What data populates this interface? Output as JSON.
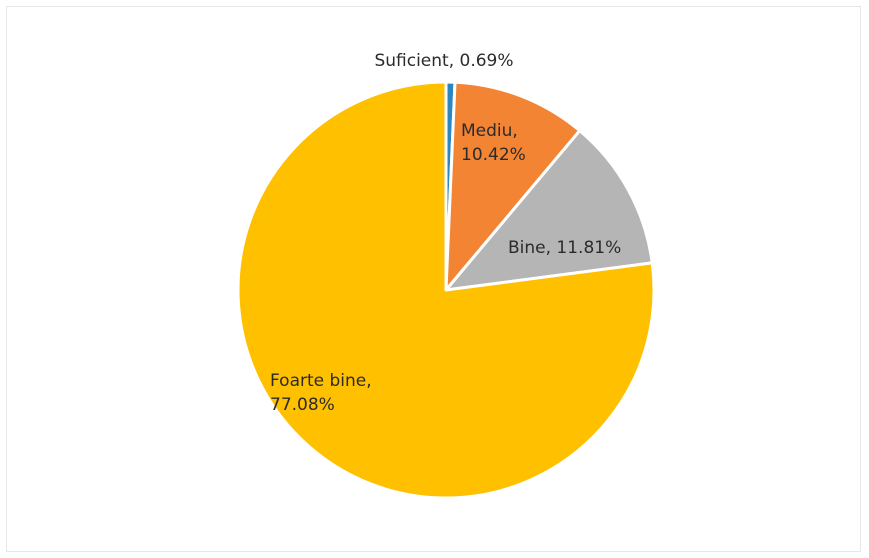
{
  "chart_data": {
    "type": "pie",
    "title": "",
    "legend": "none",
    "slices": [
      {
        "name": "Suficient",
        "value": 0.69,
        "label_lines": [
          "Suficient, 0.69%"
        ],
        "color": "#2E86C1"
      },
      {
        "name": "Mediu",
        "value": 10.42,
        "label_lines": [
          "Mediu,",
          "10.42%"
        ],
        "color": "#F28433"
      },
      {
        "name": "Bine",
        "value": 11.81,
        "label_lines": [
          "Bine, 11.81%"
        ],
        "color": "#B5B5B5"
      },
      {
        "name": "Foarte bine",
        "value": 77.08,
        "label_lines": [
          "Foarte bine,",
          "77.08%"
        ],
        "color": "#FFC000"
      }
    ]
  }
}
